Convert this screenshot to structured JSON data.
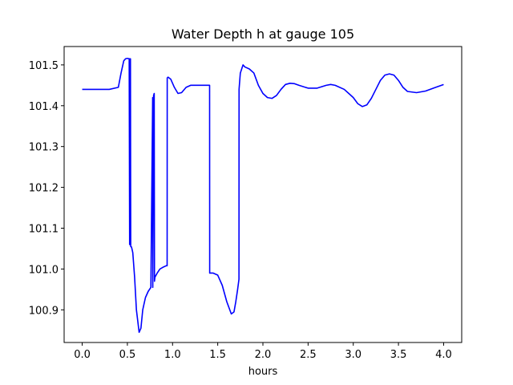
{
  "chart_data": {
    "type": "line",
    "title": "Water Depth h at gauge 105",
    "xlabel": "hours",
    "ylabel": "",
    "xlim": [
      -0.2,
      4.2
    ],
    "ylim": [
      100.82,
      101.545
    ],
    "xticks": [
      0.0,
      0.5,
      1.0,
      1.5,
      2.0,
      2.5,
      3.0,
      3.5,
      4.0
    ],
    "xtick_labels": [
      "0.0",
      "0.5",
      "1.0",
      "1.5",
      "2.0",
      "2.5",
      "3.0",
      "3.5",
      "4.0"
    ],
    "yticks": [
      100.9,
      101.0,
      101.1,
      101.2,
      101.3,
      101.4,
      101.5
    ],
    "ytick_labels": [
      "100.9",
      "101.0",
      "101.1",
      "101.2",
      "101.3",
      "101.4",
      "101.5"
    ],
    "grid": false,
    "series": [
      {
        "color": "#0000ff",
        "x": [
          0.0,
          0.1,
          0.2,
          0.3,
          0.4,
          0.43,
          0.46,
          0.48,
          0.5,
          0.52,
          0.525,
          0.528,
          0.531,
          0.534,
          0.537,
          0.54,
          0.545,
          0.55,
          0.56,
          0.58,
          0.6,
          0.63,
          0.65,
          0.67,
          0.7,
          0.73,
          0.76,
          0.78,
          0.781,
          0.79,
          0.797,
          0.8,
          0.805,
          0.83,
          0.86,
          0.9,
          0.93,
          0.94,
          0.941,
          0.95,
          0.98,
          1.02,
          1.06,
          1.1,
          1.15,
          1.2,
          1.25,
          1.3,
          1.35,
          1.4,
          1.41,
          1.411,
          1.45,
          1.5,
          1.55,
          1.6,
          1.65,
          1.68,
          1.7,
          1.72,
          1.735,
          1.736,
          1.75,
          1.78,
          1.8,
          1.85,
          1.9,
          1.95,
          2.0,
          2.05,
          2.1,
          2.15,
          2.2,
          2.25,
          2.3,
          2.35,
          2.4,
          2.5,
          2.6,
          2.7,
          2.75,
          2.8,
          2.9,
          2.95,
          3.0,
          3.05,
          3.1,
          3.15,
          3.2,
          3.25,
          3.3,
          3.35,
          3.4,
          3.45,
          3.5,
          3.55,
          3.6,
          3.7,
          3.8,
          3.9,
          4.0
        ],
        "y": [
          101.44,
          101.44,
          101.44,
          101.44,
          101.445,
          101.48,
          101.51,
          101.515,
          101.516,
          101.515,
          101.06,
          101.515,
          101.06,
          101.515,
          101.055,
          101.055,
          101.054,
          101.05,
          101.04,
          100.98,
          100.9,
          100.845,
          100.855,
          100.9,
          100.93,
          100.945,
          100.955,
          101.42,
          100.955,
          101.425,
          101.43,
          100.97,
          100.98,
          100.99,
          101.0,
          101.005,
          101.008,
          101.008,
          101.468,
          101.47,
          101.465,
          101.445,
          101.43,
          101.432,
          101.445,
          101.45,
          101.45,
          101.45,
          101.45,
          101.45,
          101.45,
          100.99,
          100.99,
          100.985,
          100.96,
          100.92,
          100.89,
          100.895,
          100.92,
          100.95,
          100.975,
          101.44,
          101.48,
          101.5,
          101.495,
          101.49,
          101.48,
          101.45,
          101.43,
          101.42,
          101.418,
          101.425,
          101.44,
          101.452,
          101.455,
          101.454,
          101.45,
          101.443,
          101.443,
          101.45,
          101.452,
          101.45,
          101.44,
          101.43,
          101.42,
          101.405,
          101.398,
          101.402,
          101.418,
          101.44,
          101.462,
          101.475,
          101.478,
          101.475,
          101.462,
          101.445,
          101.435,
          101.432,
          101.436,
          101.444,
          101.452
        ]
      }
    ]
  }
}
